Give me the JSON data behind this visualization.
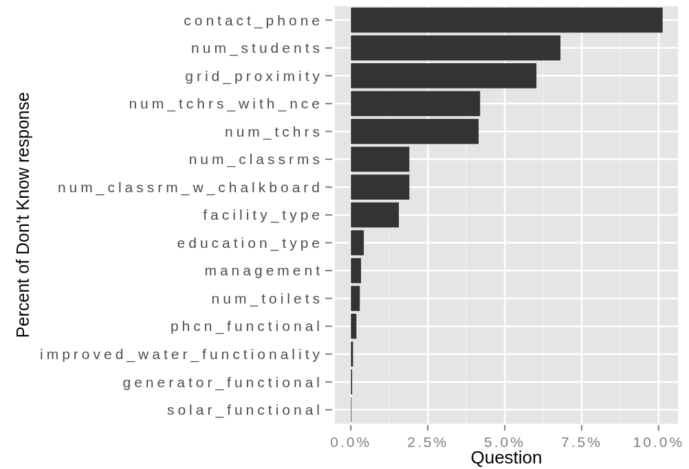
{
  "chart_data": {
    "type": "bar",
    "orientation": "horizontal",
    "xlabel": "Question",
    "ylabel": "Percent of Don't Know response",
    "categories": [
      "contact_phone",
      "num_students",
      "grid_proximity",
      "num_tchrs_with_nce",
      "num_tchrs",
      "num_classrms",
      "num_classrm_w_chalkboard",
      "facility_type",
      "education_type",
      "management",
      "num_toilets",
      "phcn_functional",
      "improved_water_functionality",
      "generator_functional",
      "solar_functional"
    ],
    "values": [
      10.13,
      6.81,
      6.03,
      4.2,
      4.15,
      1.9,
      1.9,
      1.56,
      0.42,
      0.33,
      0.29,
      0.18,
      0.07,
      0.04,
      0.02
    ],
    "color": "#333333",
    "xlim": [
      -0.52,
      10.63
    ],
    "xticks": [
      {
        "value": 0,
        "label": "0.0%"
      },
      {
        "value": 2.5,
        "label": "2.5%"
      },
      {
        "value": 5,
        "label": "5.0%"
      },
      {
        "value": 7.5,
        "label": "7.5%"
      },
      {
        "value": 10,
        "label": "10.0%"
      }
    ],
    "grid": true
  }
}
